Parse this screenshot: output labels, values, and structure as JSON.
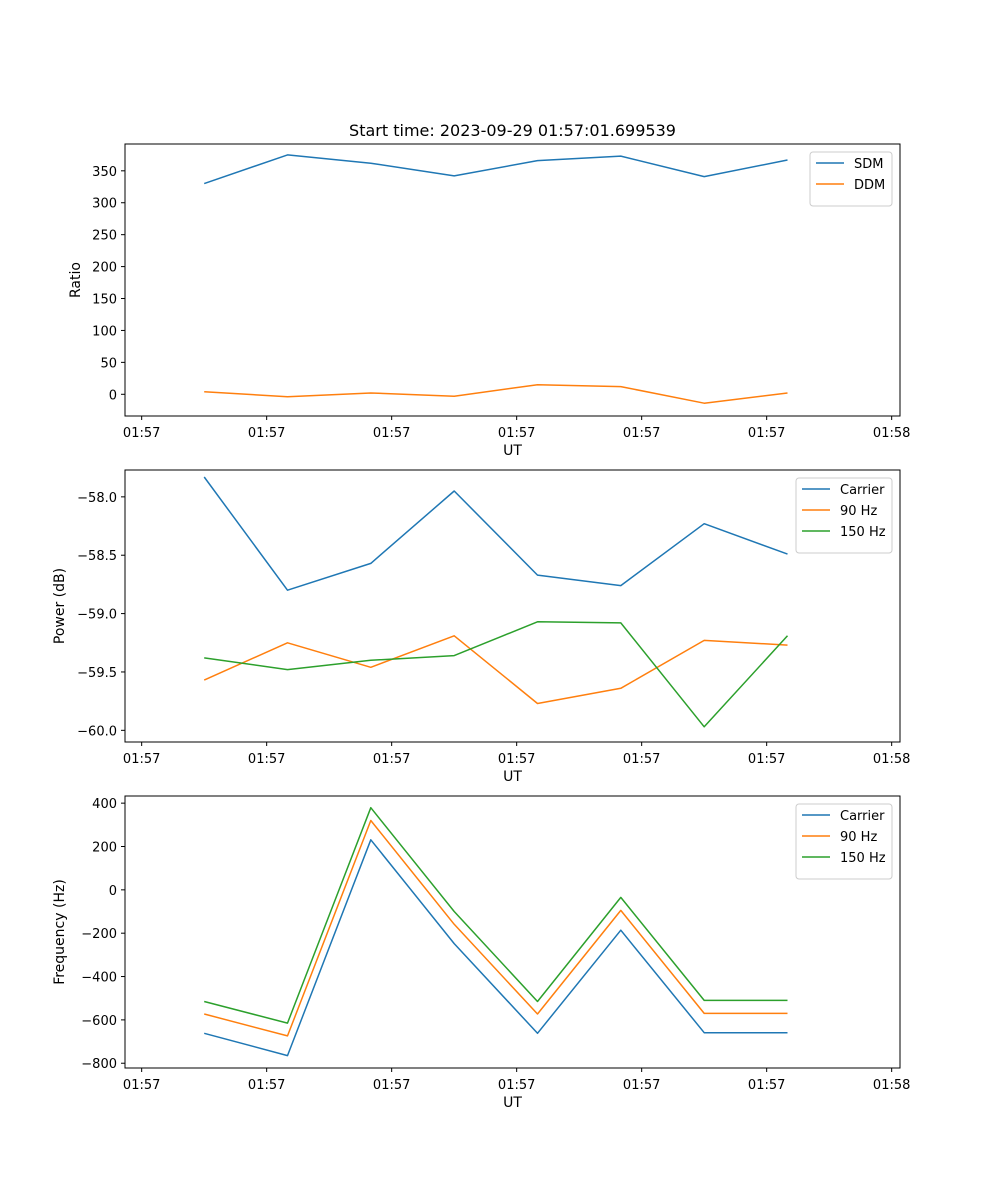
{
  "colors": {
    "blue": "#1f77b4",
    "orange": "#ff7f0e",
    "green": "#2ca02c"
  },
  "chart_data": [
    {
      "type": "line",
      "title": "Start time: 2023-09-29 01:57:01.699539",
      "xlabel": "UT",
      "ylabel": "Ratio",
      "xlim": [
        -0.2,
        9.1
      ],
      "x": [
        0.75,
        1.75,
        2.75,
        3.75,
        4.75,
        5.75,
        6.75,
        7.75
      ],
      "x_ticks": [
        0,
        1.5,
        3,
        4.5,
        6,
        7.5,
        9
      ],
      "x_tick_labels": [
        "01:57",
        "01:57",
        "01:57",
        "01:57",
        "01:57",
        "01:57",
        "01:58"
      ],
      "ylim": [
        -34,
        392
      ],
      "y_ticks": [
        0,
        50,
        100,
        150,
        200,
        250,
        300,
        350
      ],
      "y_tick_labels": [
        "0",
        "50",
        "100",
        "150",
        "200",
        "250",
        "300",
        "350"
      ],
      "legend_position": "upper-right",
      "series": [
        {
          "name": "SDM",
          "color": "#1f77b4",
          "values": [
            330,
            375,
            362,
            342,
            366,
            373,
            341,
            367
          ]
        },
        {
          "name": "DDM",
          "color": "#ff7f0e",
          "values": [
            4,
            -4,
            2,
            -3,
            15,
            12,
            -14,
            2
          ]
        }
      ]
    },
    {
      "type": "line",
      "title": "",
      "xlabel": "UT",
      "ylabel": "Power (dB)",
      "xlim": [
        -0.2,
        9.1
      ],
      "x": [
        0.75,
        1.75,
        2.75,
        3.75,
        4.75,
        5.75,
        6.75,
        7.75
      ],
      "x_ticks": [
        0,
        1.5,
        3,
        4.5,
        6,
        7.5,
        9
      ],
      "x_tick_labels": [
        "01:57",
        "01:57",
        "01:57",
        "01:57",
        "01:57",
        "01:57",
        "01:58"
      ],
      "ylim": [
        -60.1,
        -57.77
      ],
      "y_ticks": [
        -60.0,
        -59.5,
        -59.0,
        -58.5,
        -58.0
      ],
      "y_tick_labels": [
        "−60.0",
        "−59.5",
        "−59.0",
        "−58.5",
        "−58.0"
      ],
      "legend_position": "upper-right",
      "series": [
        {
          "name": "Carrier",
          "color": "#1f77b4",
          "values": [
            -57.83,
            -58.8,
            -58.57,
            -57.95,
            -58.67,
            -58.76,
            -58.23,
            -58.49
          ]
        },
        {
          "name": "90 Hz",
          "color": "#ff7f0e",
          "values": [
            -59.57,
            -59.25,
            -59.46,
            -59.19,
            -59.77,
            -59.64,
            -59.23,
            -59.27
          ]
        },
        {
          "name": "150 Hz",
          "color": "#2ca02c",
          "values": [
            -59.38,
            -59.48,
            -59.4,
            -59.36,
            -59.07,
            -59.08,
            -59.97,
            -59.19
          ]
        }
      ]
    },
    {
      "type": "line",
      "title": "",
      "xlabel": "UT",
      "ylabel": "Frequency (Hz)",
      "xlim": [
        -0.2,
        9.1
      ],
      "x": [
        0.75,
        1.75,
        2.75,
        3.75,
        4.75,
        5.75,
        6.75,
        7.75
      ],
      "x_ticks": [
        0,
        1.5,
        3,
        4.5,
        6,
        7.5,
        9
      ],
      "x_tick_labels": [
        "01:57",
        "01:57",
        "01:57",
        "01:57",
        "01:57",
        "01:57",
        "01:58"
      ],
      "ylim": [
        -822,
        433
      ],
      "y_ticks": [
        -800,
        -600,
        -400,
        -200,
        0,
        200,
        400
      ],
      "y_tick_labels": [
        "−800",
        "−600",
        "−400",
        "−200",
        "0",
        "200",
        "400"
      ],
      "legend_position": "upper-right",
      "series": [
        {
          "name": "Carrier",
          "color": "#1f77b4",
          "values": [
            -662,
            -765,
            231,
            -248,
            -662,
            -186,
            -659,
            -659
          ]
        },
        {
          "name": "90 Hz",
          "color": "#ff7f0e",
          "values": [
            -573,
            -674,
            320,
            -159,
            -573,
            -95,
            -570,
            -570
          ]
        },
        {
          "name": "150 Hz",
          "color": "#2ca02c",
          "values": [
            -515,
            -615,
            379,
            -100,
            -515,
            -35,
            -510,
            -510
          ]
        }
      ]
    }
  ]
}
